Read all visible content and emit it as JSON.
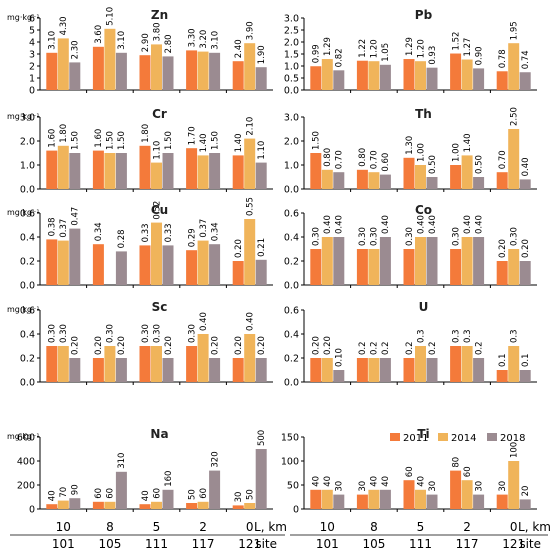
{
  "legend": [
    {
      "label": "2011",
      "color": "#f47a3a"
    },
    {
      "label": "2014",
      "color": "#f0b45a"
    },
    {
      "label": "2018",
      "color": "#9b8b91"
    }
  ],
  "colors": [
    "#f47a3a",
    "#f0b45a",
    "#9b8b91"
  ],
  "unit_label": "mg·kg⁻¹",
  "x_axis": {
    "distances": [
      "10",
      "8",
      "5",
      "2",
      "0"
    ],
    "sites": [
      "101",
      "105",
      "111",
      "117",
      "121"
    ],
    "distance_label": "L, km",
    "site_label": "site"
  },
  "chart_data": [
    {
      "type": "bar",
      "element": "Zn",
      "show_unit": true,
      "ylim": [
        0,
        6
      ],
      "yticks": [
        "0",
        "1",
        "2",
        "3",
        "4",
        "5",
        "6"
      ],
      "tick_values": [
        0,
        1,
        2,
        3,
        4,
        5,
        6
      ],
      "series": [
        {
          "name": "2011",
          "values": [
            3.1,
            3.6,
            2.9,
            3.3,
            2.4
          ],
          "labels": [
            "3.10",
            "3.60",
            "2.90",
            "3.30",
            "2.40"
          ]
        },
        {
          "name": "2014",
          "values": [
            4.3,
            5.1,
            3.8,
            3.2,
            3.9
          ],
          "labels": [
            "4.30",
            "5.10",
            "3.80",
            "3.20",
            "3.90"
          ]
        },
        {
          "name": "2018",
          "values": [
            2.3,
            3.1,
            2.8,
            3.1,
            1.9
          ],
          "labels": [
            "2.30",
            "3.10",
            "2.80",
            "3.10",
            "1.90"
          ]
        }
      ]
    },
    {
      "type": "bar",
      "element": "Pb",
      "show_unit": false,
      "ylim": [
        0,
        3
      ],
      "yticks": [
        "0.0",
        "0.5",
        "1.0",
        "1.5",
        "2.0",
        "2.5",
        "3.0"
      ],
      "tick_values": [
        0,
        0.5,
        1,
        1.5,
        2,
        2.5,
        3
      ],
      "series": [
        {
          "name": "2011",
          "values": [
            0.99,
            1.22,
            1.29,
            1.52,
            0.78
          ],
          "labels": [
            "0.99",
            "1.22",
            "1.29",
            "1.52",
            "0.78"
          ]
        },
        {
          "name": "2014",
          "values": [
            1.29,
            1.2,
            1.2,
            1.27,
            1.95
          ],
          "labels": [
            "1.29",
            "1.20",
            "1.20",
            "1.27",
            "1.95"
          ]
        },
        {
          "name": "2018",
          "values": [
            0.82,
            1.05,
            0.93,
            0.9,
            0.74
          ],
          "labels": [
            "0.82",
            "1.05",
            "0.93",
            "0.90",
            "0.74"
          ]
        }
      ]
    },
    {
      "type": "bar",
      "element": "Cr",
      "show_unit": true,
      "ylim": [
        0,
        3
      ],
      "yticks": [
        "0.0",
        "1.0",
        "2.0",
        "3.0"
      ],
      "tick_values": [
        0,
        1,
        2,
        3
      ],
      "series": [
        {
          "name": "2011",
          "values": [
            1.6,
            1.6,
            1.8,
            1.7,
            1.4
          ],
          "labels": [
            "1.60",
            "1.60",
            "1.80",
            "1.70",
            "1.40"
          ]
        },
        {
          "name": "2014",
          "values": [
            1.8,
            1.5,
            1.1,
            1.4,
            2.1
          ],
          "labels": [
            "1.80",
            "1.50",
            "1.10",
            "1.40",
            "2.10"
          ]
        },
        {
          "name": "2018",
          "values": [
            1.5,
            1.5,
            1.5,
            1.5,
            1.1
          ],
          "labels": [
            "1.50",
            "1.50",
            "1.50",
            "1.50",
            "1.10"
          ]
        }
      ]
    },
    {
      "type": "bar",
      "element": "Th",
      "show_unit": false,
      "ylim": [
        0,
        3
      ],
      "yticks": [
        "0.0",
        "1.0",
        "2.0",
        "3.0"
      ],
      "tick_values": [
        0,
        1,
        2,
        3
      ],
      "series": [
        {
          "name": "2011",
          "values": [
            1.5,
            0.8,
            1.3,
            1.0,
            0.7
          ],
          "labels": [
            "1.50",
            "0.80",
            "1.30",
            "1.00",
            "0.70"
          ]
        },
        {
          "name": "2014",
          "values": [
            0.8,
            0.7,
            1.0,
            1.4,
            2.5
          ],
          "labels": [
            "0.80",
            "0.70",
            "1.00",
            "1.40",
            "2.50"
          ]
        },
        {
          "name": "2018",
          "values": [
            0.7,
            0.6,
            0.5,
            0.5,
            0.4
          ],
          "labels": [
            "0.70",
            "0.60",
            "0.50",
            "0.50",
            "0.40"
          ]
        }
      ]
    },
    {
      "type": "bar",
      "element": "Cu",
      "show_unit": true,
      "ylim": [
        0,
        0.6
      ],
      "yticks": [
        "0.0",
        "0.2",
        "0.4",
        "0.6"
      ],
      "tick_values": [
        0,
        0.2,
        0.4,
        0.6
      ],
      "series": [
        {
          "name": "2011",
          "values": [
            0.38,
            0.34,
            0.33,
            0.29,
            0.2
          ],
          "labels": [
            "0.38",
            "0.34",
            "0.33",
            "0.29",
            "0.20"
          ]
        },
        {
          "name": "2014",
          "values": [
            0.37,
            null,
            0.52,
            0.37,
            0.55
          ],
          "labels": [
            "0.37",
            "",
            "0.52",
            "0.37",
            "0.55"
          ]
        },
        {
          "name": "2018",
          "values": [
            0.47,
            0.28,
            0.33,
            0.34,
            0.21
          ],
          "labels": [
            "0.47",
            "0.28",
            "0.33",
            "0.34",
            "0.21"
          ]
        }
      ]
    },
    {
      "type": "bar",
      "element": "Co",
      "show_unit": false,
      "ylim": [
        0,
        0.6
      ],
      "yticks": [
        "0.0",
        "0.2",
        "0.4",
        "0.6"
      ],
      "tick_values": [
        0,
        0.2,
        0.4,
        0.6
      ],
      "series": [
        {
          "name": "2011",
          "values": [
            0.3,
            0.3,
            0.3,
            0.3,
            0.2
          ],
          "labels": [
            "0.30",
            "0.30",
            "0.30",
            "0.30",
            "0.20"
          ]
        },
        {
          "name": "2014",
          "values": [
            0.4,
            0.3,
            0.4,
            0.4,
            0.3
          ],
          "labels": [
            "0.40",
            "0.30",
            "0.40",
            "0.40",
            "0.30"
          ]
        },
        {
          "name": "2018",
          "values": [
            0.4,
            0.4,
            0.4,
            0.4,
            0.2
          ],
          "labels": [
            "0.40",
            "0.40",
            "0.40",
            "0.40",
            "0.20"
          ]
        }
      ]
    },
    {
      "type": "bar",
      "element": "Sc",
      "show_unit": true,
      "ylim": [
        0,
        0.6
      ],
      "yticks": [
        "0.0",
        "0.2",
        "0.4",
        "0.6"
      ],
      "tick_values": [
        0,
        0.2,
        0.4,
        0.6
      ],
      "series": [
        {
          "name": "2011",
          "values": [
            0.3,
            0.2,
            0.3,
            0.3,
            0.2
          ],
          "labels": [
            "0.30",
            "0.20",
            "0.30",
            "0.30",
            "0.20"
          ]
        },
        {
          "name": "2014",
          "values": [
            0.3,
            0.3,
            0.3,
            0.4,
            0.4
          ],
          "labels": [
            "0.30",
            "0.30",
            "0.30",
            "0.40",
            "0.40"
          ]
        },
        {
          "name": "2018",
          "values": [
            0.2,
            0.2,
            0.2,
            0.2,
            0.2
          ],
          "labels": [
            "0.20",
            "0.20",
            "0.20",
            "0.20",
            "0.20"
          ]
        }
      ]
    },
    {
      "type": "bar",
      "element": "U",
      "show_unit": false,
      "ylim": [
        0,
        0.6
      ],
      "yticks": [
        "0.0",
        "0.2",
        "0.4",
        "0.6"
      ],
      "tick_values": [
        0,
        0.2,
        0.4,
        0.6
      ],
      "series": [
        {
          "name": "2011",
          "values": [
            0.2,
            0.2,
            0.2,
            0.3,
            0.1
          ],
          "labels": [
            "0.20",
            "0.2",
            "0.2",
            "0.3",
            "0.1"
          ]
        },
        {
          "name": "2014",
          "values": [
            0.2,
            0.2,
            0.3,
            0.3,
            0.3
          ],
          "labels": [
            "0.20",
            "0.2",
            "0.3",
            "0.3",
            "0.3"
          ]
        },
        {
          "name": "2018",
          "values": [
            0.1,
            0.2,
            0.2,
            0.2,
            0.1
          ],
          "labels": [
            "0.10",
            "0.2",
            "0.2",
            "0.2",
            "0.1"
          ]
        }
      ]
    },
    {
      "type": "bar",
      "element": "Na",
      "show_unit": true,
      "ylim": [
        0,
        600
      ],
      "yticks": [
        "0",
        "200",
        "400",
        "600"
      ],
      "tick_values": [
        0,
        200,
        400,
        600
      ],
      "series": [
        {
          "name": "2011",
          "values": [
            40,
            60,
            40,
            50,
            30
          ],
          "labels": [
            "40",
            "60",
            "40",
            "50",
            "30"
          ]
        },
        {
          "name": "2014",
          "values": [
            70,
            60,
            60,
            60,
            50
          ],
          "labels": [
            "70",
            "60",
            "60",
            "60",
            "50"
          ]
        },
        {
          "name": "2018",
          "values": [
            90,
            310,
            160,
            320,
            500
          ],
          "labels": [
            "90",
            "310",
            "160",
            "320",
            "500"
          ]
        }
      ]
    },
    {
      "type": "bar",
      "element": "Ti",
      "show_unit": false,
      "ylim": [
        0,
        150
      ],
      "yticks": [
        "0",
        "50",
        "100",
        "150"
      ],
      "tick_values": [
        0,
        50,
        100,
        150
      ],
      "series": [
        {
          "name": "2011",
          "values": [
            40,
            30,
            60,
            80,
            30
          ],
          "labels": [
            "40",
            "30",
            "60",
            "80",
            "30"
          ]
        },
        {
          "name": "2014",
          "values": [
            40,
            40,
            40,
            60,
            100
          ],
          "labels": [
            "40",
            "40",
            "40",
            "60",
            "100"
          ]
        },
        {
          "name": "2018",
          "values": [
            30,
            40,
            30,
            30,
            20
          ],
          "labels": [
            "30",
            "40",
            "30",
            "30",
            "20"
          ]
        }
      ]
    }
  ]
}
